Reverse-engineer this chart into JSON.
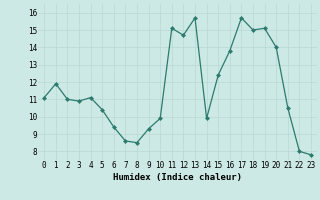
{
  "x": [
    0,
    1,
    2,
    3,
    4,
    5,
    6,
    7,
    8,
    9,
    10,
    11,
    12,
    13,
    14,
    15,
    16,
    17,
    18,
    19,
    20,
    21,
    22,
    23
  ],
  "y": [
    11.1,
    11.9,
    11.0,
    10.9,
    11.1,
    10.4,
    9.4,
    8.6,
    8.5,
    9.3,
    9.9,
    15.1,
    14.7,
    15.7,
    9.9,
    12.4,
    13.8,
    15.7,
    15.0,
    15.1,
    14.0,
    10.5,
    8.0,
    7.8
  ],
  "line_color": "#2d7a6e",
  "marker_color": "#2d7a6e",
  "bg_color": "#cce9e5",
  "grid_color": "#b8d8d4",
  "xlabel": "Humidex (Indice chaleur)",
  "xlim": [
    -0.5,
    23.5
  ],
  "ylim": [
    7.5,
    16.5
  ],
  "yticks": [
    8,
    9,
    10,
    11,
    12,
    13,
    14,
    15,
    16
  ],
  "xticks": [
    0,
    1,
    2,
    3,
    4,
    5,
    6,
    7,
    8,
    9,
    10,
    11,
    12,
    13,
    14,
    15,
    16,
    17,
    18,
    19,
    20,
    21,
    22,
    23
  ],
  "xtick_labels": [
    "0",
    "1",
    "2",
    "3",
    "4",
    "5",
    "6",
    "7",
    "8",
    "9",
    "10",
    "11",
    "12",
    "13",
    "14",
    "15",
    "16",
    "17",
    "18",
    "19",
    "20",
    "21",
    "22",
    "23"
  ],
  "label_fontsize": 6.5,
  "tick_fontsize": 5.5
}
